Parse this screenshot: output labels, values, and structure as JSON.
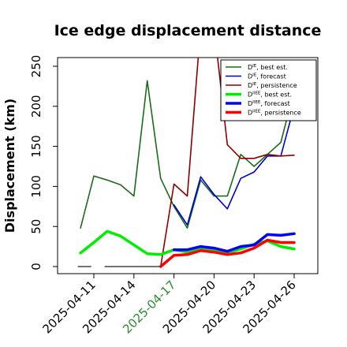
{
  "chart_data": {
    "type": "line",
    "title": "Ice edge displacement distance",
    "xlabel": "",
    "ylabel": "Displacement (km)",
    "ylim": [
      0,
      260
    ],
    "yticks": [
      0,
      50,
      100,
      150,
      200,
      250
    ],
    "xlim": [
      "2025-04-09",
      "2025-04-28"
    ],
    "xticks": [
      {
        "label": "2025-04-11",
        "x": "2025-04-11",
        "color": "#000000"
      },
      {
        "label": "2025-04-14",
        "x": "2025-04-14",
        "color": "#000000"
      },
      {
        "label": "2025-04-17",
        "x": "2025-04-17",
        "color": "#2e8b2e"
      },
      {
        "label": "2025-04-20",
        "x": "2025-04-20",
        "color": "#000000"
      },
      {
        "label": "2025-04-23",
        "x": "2025-04-23",
        "color": "#000000"
      },
      {
        "label": "2025-04-26",
        "x": "2025-04-26",
        "color": "#000000"
      }
    ],
    "grid": false,
    "legend_position": "top-right",
    "x": [
      "2025-04-10",
      "2025-04-11",
      "2025-04-12",
      "2025-04-13",
      "2025-04-14",
      "2025-04-15",
      "2025-04-16",
      "2025-04-17",
      "2025-04-18",
      "2025-04-19",
      "2025-04-20",
      "2025-04-21",
      "2025-04-22",
      "2025-04-23",
      "2025-04-24",
      "2025-04-25",
      "2025-04-26"
    ],
    "series": [
      {
        "name": "D^IE, best est.",
        "legend_main": "D",
        "legend_sup": "IE",
        "legend_rest": ", best est.",
        "color": "#1a6b1a",
        "width": 1.6,
        "values": [
          48,
          113,
          108,
          102,
          88,
          232,
          110,
          75,
          48,
          108,
          88,
          88,
          140,
          125,
          140,
          155,
          220
        ]
      },
      {
        "name": "D^IE, forecast",
        "legend_main": "D",
        "legend_sup": "IE",
        "legend_rest": ", forecast",
        "color": "#0000cc",
        "width": 1.6,
        "values": [
          null,
          null,
          null,
          null,
          null,
          null,
          null,
          77,
          52,
          112,
          90,
          72,
          110,
          118,
          138,
          138,
          200
        ]
      },
      {
        "name": "D^IE, persistence",
        "legend_main": "D",
        "legend_sup": "IE",
        "legend_rest": ", persistence",
        "color": "#8b0000",
        "width": 1.6,
        "values": [
          null,
          null,
          null,
          null,
          null,
          null,
          0,
          103,
          88,
          300,
          300,
          152,
          135,
          135,
          140,
          138,
          139
        ]
      },
      {
        "name": "D^IIEE, best est.",
        "legend_main": "D",
        "legend_sup": "IIEE",
        "legend_rest": ", best est.",
        "color": "#00ee00",
        "width": 3.5,
        "values": [
          17,
          30,
          44,
          38,
          27,
          16,
          15,
          21,
          18,
          22,
          20,
          17,
          22,
          28,
          32,
          25,
          22
        ]
      },
      {
        "name": "D^IIEE, forecast",
        "legend_main": "D",
        "legend_sup": "IIEE",
        "legend_rest": ", forecast",
        "color": "#0000ff",
        "width": 3.5,
        "values": [
          null,
          null,
          null,
          null,
          null,
          null,
          null,
          21,
          21,
          25,
          23,
          19,
          25,
          27,
          40,
          39,
          41
        ]
      },
      {
        "name": "D^IIEE, persistence",
        "legend_main": "D",
        "legend_sup": "IIEE",
        "legend_rest": ", persistence",
        "color": "#ff0000",
        "width": 3.5,
        "values": [
          null,
          null,
          null,
          null,
          null,
          null,
          0,
          14,
          15,
          20,
          18,
          15,
          17,
          23,
          33,
          30,
          30
        ]
      }
    ],
    "missing_markers": [
      {
        "from": "2025-04-09.8",
        "to": "2025-04-10.8",
        "value": 0,
        "color": "#444444"
      },
      {
        "from": "2025-04-11.8",
        "to": "2025-04-16",
        "value": 0,
        "color": "#444444"
      }
    ]
  }
}
